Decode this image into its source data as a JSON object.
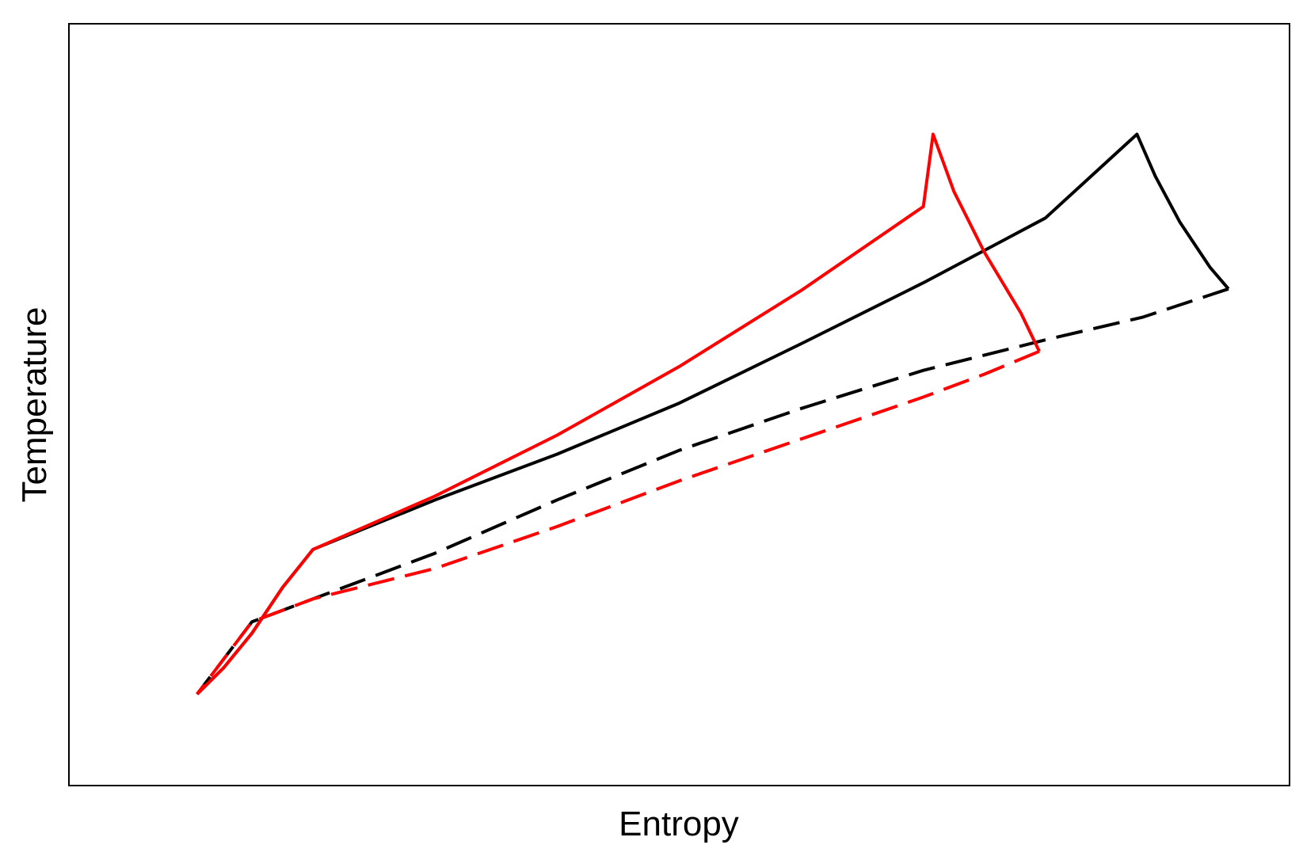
{
  "chart_data": {
    "type": "line",
    "title": "",
    "xlabel": "Entropy",
    "ylabel": "Temperature",
    "xlim": [
      0,
      100
    ],
    "ylim": [
      0,
      100
    ],
    "grid": false,
    "legend": "none",
    "x_tick_labels": [],
    "y_tick_labels": [],
    "series": [
      {
        "color": "#000000",
        "style": "solid",
        "points": [
          [
            10.5,
            12
          ],
          [
            12.7,
            15.5
          ],
          [
            15,
            20
          ],
          [
            17.5,
            26
          ],
          [
            20,
            31
          ],
          [
            30,
            37.5
          ],
          [
            40,
            43.5
          ],
          [
            50,
            50.2
          ],
          [
            60,
            58
          ],
          [
            70,
            66
          ],
          [
            80,
            74.5
          ],
          [
            87.5,
            85.5
          ],
          [
            89,
            80
          ],
          [
            91,
            74
          ],
          [
            93.5,
            68
          ],
          [
            95,
            65.2
          ]
        ]
      },
      {
        "color": "#000000",
        "style": "dashed",
        "points": [
          [
            95,
            65.2
          ],
          [
            88,
            61.5
          ],
          [
            80,
            58.5
          ],
          [
            70,
            54.5
          ],
          [
            60,
            49.5
          ],
          [
            50,
            44
          ],
          [
            40,
            37.5
          ],
          [
            30,
            30.5
          ],
          [
            20,
            24.5
          ],
          [
            15,
            21.5
          ],
          [
            10.5,
            12
          ]
        ]
      },
      {
        "color": "#ff0000",
        "style": "solid",
        "points": [
          [
            10.5,
            12
          ],
          [
            12.7,
            15.5
          ],
          [
            15,
            20
          ],
          [
            17.5,
            26
          ],
          [
            20,
            31
          ],
          [
            30,
            38
          ],
          [
            40,
            46
          ],
          [
            50,
            55
          ],
          [
            60,
            65
          ],
          [
            70,
            76
          ],
          [
            70.8,
            85.5
          ],
          [
            72.5,
            78
          ],
          [
            75,
            70
          ],
          [
            78,
            62
          ],
          [
            79.5,
            57
          ]
        ]
      },
      {
        "color": "#ff0000",
        "style": "dashed",
        "points": [
          [
            79.5,
            57
          ],
          [
            75,
            54
          ],
          [
            70,
            51
          ],
          [
            60,
            45.5
          ],
          [
            50,
            40
          ],
          [
            40,
            34
          ],
          [
            30,
            28.5
          ],
          [
            20,
            24.5
          ],
          [
            15,
            21.5
          ],
          [
            10.5,
            12
          ]
        ]
      }
    ]
  }
}
